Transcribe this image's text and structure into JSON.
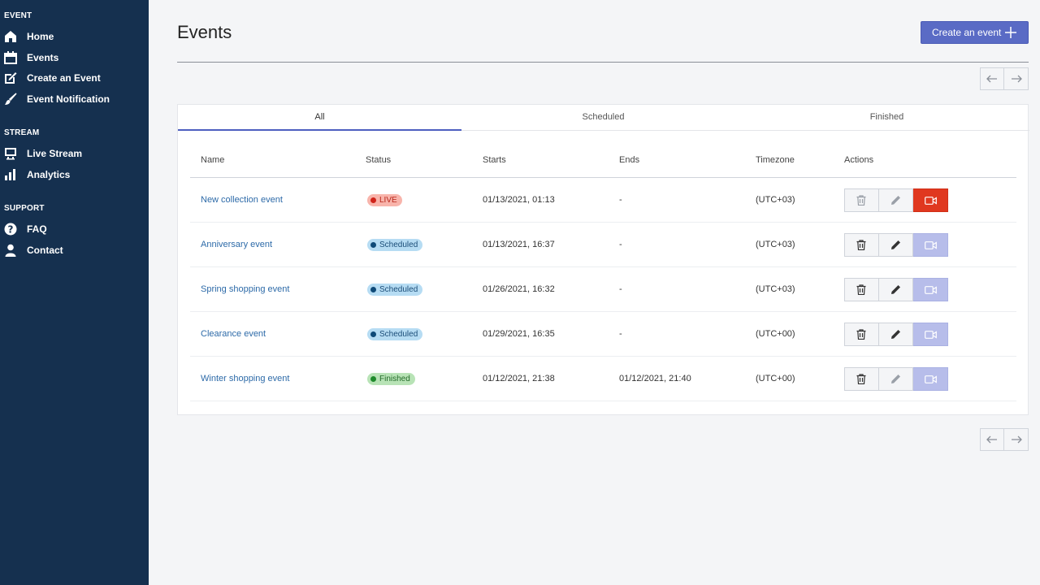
{
  "sidebar": {
    "sections": [
      {
        "title": "EVENT",
        "items": [
          {
            "label": "Home",
            "icon": "home-icon"
          },
          {
            "label": "Events",
            "icon": "calendar-icon"
          },
          {
            "label": "Create an Event",
            "icon": "edit-icon"
          },
          {
            "label": "Event Notification",
            "icon": "brush-icon"
          }
        ]
      },
      {
        "title": "STREAM",
        "items": [
          {
            "label": "Live Stream",
            "icon": "monitor-icon"
          },
          {
            "label": "Analytics",
            "icon": "bar-chart-icon"
          }
        ]
      },
      {
        "title": "SUPPORT",
        "items": [
          {
            "label": "FAQ",
            "icon": "question-icon"
          },
          {
            "label": "Contact",
            "icon": "user-icon"
          }
        ]
      }
    ]
  },
  "header": {
    "title": "Events",
    "create_label": "Create an event"
  },
  "tabs": [
    {
      "label": "All",
      "active": true
    },
    {
      "label": "Scheduled",
      "active": false
    },
    {
      "label": "Finished",
      "active": false
    }
  ],
  "table": {
    "columns": [
      "Name",
      "Status",
      "Starts",
      "Ends",
      "Timezone",
      "Actions"
    ],
    "rows": [
      {
        "name": "New collection event",
        "status": "LIVE",
        "starts": "01/13/2021, 01:13",
        "ends": "-",
        "timezone": "(UTC+03)"
      },
      {
        "name": "Anniversary event",
        "status": "Scheduled",
        "starts": "01/13/2021, 16:37",
        "ends": "-",
        "timezone": "(UTC+03)"
      },
      {
        "name": "Spring shopping event",
        "status": "Scheduled",
        "starts": "01/26/2021, 16:32",
        "ends": "-",
        "timezone": "(UTC+03)"
      },
      {
        "name": "Clearance event",
        "status": "Scheduled",
        "starts": "01/29/2021, 16:35",
        "ends": "-",
        "timezone": "(UTC+00)"
      },
      {
        "name": "Winter shopping event",
        "status": "Finished",
        "starts": "01/12/2021, 21:38",
        "ends": "01/12/2021, 21:40",
        "timezone": "(UTC+00)"
      }
    ]
  },
  "colors": {
    "sidebar_bg": "#15304f",
    "accent": "#5a6bc5",
    "live_bg": "#f8b4ab",
    "live_dot": "#d0241a",
    "scheduled_bg": "#b6dcf3",
    "scheduled_dot": "#0f4a78",
    "finished_bg": "#b8e3b6",
    "finished_dot": "#1f8a2c",
    "stream_live": "#e0381f",
    "stream_off": "#b7bdea"
  }
}
